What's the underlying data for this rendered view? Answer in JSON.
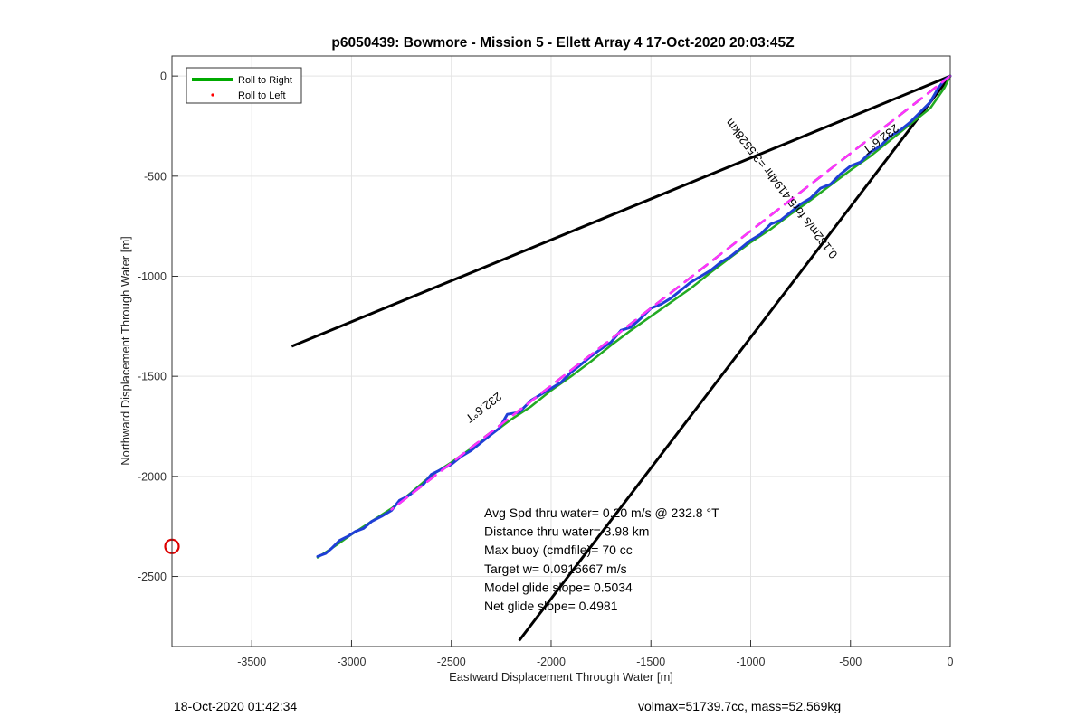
{
  "chart_data": {
    "type": "line",
    "title": "p6050439: Bowmore - Mission 5 - Ellett Array 4 17-Oct-2020 20:03:45Z",
    "xlabel": "Eastward Displacement Through Water [m]",
    "ylabel": "Northward Displacement Through Water [m]",
    "xlim": [
      -3900,
      0
    ],
    "ylim": [
      -2850,
      100
    ],
    "xticks": [
      -3500,
      -3000,
      -2500,
      -2000,
      -1500,
      -1000,
      -500,
      0
    ],
    "yticks": [
      0,
      -500,
      -1000,
      -1500,
      -2000,
      -2500
    ],
    "grid": true,
    "legend": {
      "placement": "top-left",
      "entries": [
        {
          "label": "Roll to Right",
          "color": "#00aa00",
          "marker": "line"
        },
        {
          "label": "Roll to Left",
          "color": "#ff0000",
          "marker": "dot"
        }
      ]
    },
    "series": [
      {
        "name": "Roll to Right",
        "color": "#22aa22",
        "x": [
          -3170,
          -3100,
          -3000,
          -2900,
          -2800,
          -2700,
          -2600,
          -2500,
          -2400,
          -2300,
          -2200,
          -2100,
          -2000,
          -1900,
          -1800,
          -1700,
          -1600,
          -1500,
          -1400,
          -1300,
          -1200,
          -1100,
          -1000,
          -900,
          -800,
          -700,
          -600,
          -500,
          -400,
          -300,
          -200,
          -100,
          -30,
          0
        ],
        "y": [
          -2405,
          -2360,
          -2290,
          -2225,
          -2160,
          -2080,
          -1995,
          -1930,
          -1860,
          -1790,
          -1715,
          -1650,
          -1570,
          -1500,
          -1425,
          -1345,
          -1270,
          -1200,
          -1130,
          -1060,
          -980,
          -905,
          -830,
          -765,
          -690,
          -620,
          -545,
          -470,
          -400,
          -320,
          -240,
          -160,
          -60,
          0
        ]
      },
      {
        "name": "",
        "color": "#1f3fd6",
        "x": [
          -3170,
          -3130,
          -3100,
          -3060,
          -3020,
          -2980,
          -2940,
          -2900,
          -2850,
          -2800,
          -2760,
          -2720,
          -2680,
          -2640,
          -2600,
          -2560,
          -2500,
          -2450,
          -2400,
          -2350,
          -2300,
          -2260,
          -2220,
          -2160,
          -2100,
          -2050,
          -2000,
          -1950,
          -1900,
          -1850,
          -1800,
          -1760,
          -1700,
          -1650,
          -1600,
          -1550,
          -1500,
          -1450,
          -1400,
          -1350,
          -1300,
          -1250,
          -1200,
          -1150,
          -1100,
          -1050,
          -1000,
          -950,
          -900,
          -850,
          -800,
          -750,
          -700,
          -650,
          -600,
          -550,
          -500,
          -450,
          -400,
          -350,
          -300,
          -250,
          -200,
          -150,
          -100,
          -60,
          -30,
          0
        ],
        "y": [
          -2400,
          -2385,
          -2360,
          -2320,
          -2300,
          -2275,
          -2260,
          -2225,
          -2200,
          -2170,
          -2120,
          -2100,
          -2070,
          -2040,
          -1990,
          -1970,
          -1940,
          -1900,
          -1870,
          -1830,
          -1790,
          -1760,
          -1690,
          -1680,
          -1620,
          -1590,
          -1560,
          -1530,
          -1480,
          -1440,
          -1400,
          -1370,
          -1330,
          -1270,
          -1255,
          -1210,
          -1160,
          -1140,
          -1110,
          -1070,
          -1030,
          -1000,
          -970,
          -930,
          -900,
          -860,
          -820,
          -790,
          -740,
          -720,
          -680,
          -640,
          -610,
          -560,
          -540,
          -490,
          -450,
          -430,
          -380,
          -350,
          -300,
          -270,
          -230,
          -180,
          -130,
          -60,
          -20,
          0
        ]
      },
      {
        "name": "",
        "color": "#ff33ff",
        "x": [
          -2800,
          0
        ],
        "y": [
          -2165,
          0
        ]
      }
    ],
    "reference_lines": [
      {
        "x": [
          0,
          -3300
        ],
        "y": [
          0,
          -1350
        ],
        "color": "#000000"
      },
      {
        "x": [
          0,
          -2160
        ],
        "y": [
          0,
          -2820
        ],
        "color": "#000000"
      },
      {
        "x": [
          0,
          -2800
        ],
        "y": [
          0,
          -2165
        ],
        "color": "#000000",
        "dashed": true
      }
    ],
    "markers": [
      {
        "x": -3900,
        "y": -2350,
        "color": "#dd0000",
        "shape": "circle"
      }
    ],
    "annotations": [
      {
        "text": "232.6°T",
        "x": -2350,
        "y": -1640,
        "rotation": 143,
        "font_size": 13
      },
      {
        "text": "232.6°T",
        "x": -360,
        "y": -300,
        "rotation": 143,
        "font_size": 13
      },
      {
        "text": "0.182m/s for5.4194hr =3.5528km",
        "x": -830,
        "y": -550,
        "rotation": 232,
        "font_size": 13
      }
    ],
    "stats_text": [
      "Avg Spd thru water=  0.20 m/s @ 232.8 °T",
      "Distance thru water=  3.98 km",
      "Max buoy (cmdfile)= 70 cc",
      "Target w= 0.0916667 m/s",
      "Model glide slope= 0.5034",
      "Net glide slope= 0.4981"
    ]
  },
  "footer": {
    "timestamp": "18-Oct-2020 01:42:34",
    "vol_mass": "volmax=51739.7cc, mass=52.569kg"
  }
}
